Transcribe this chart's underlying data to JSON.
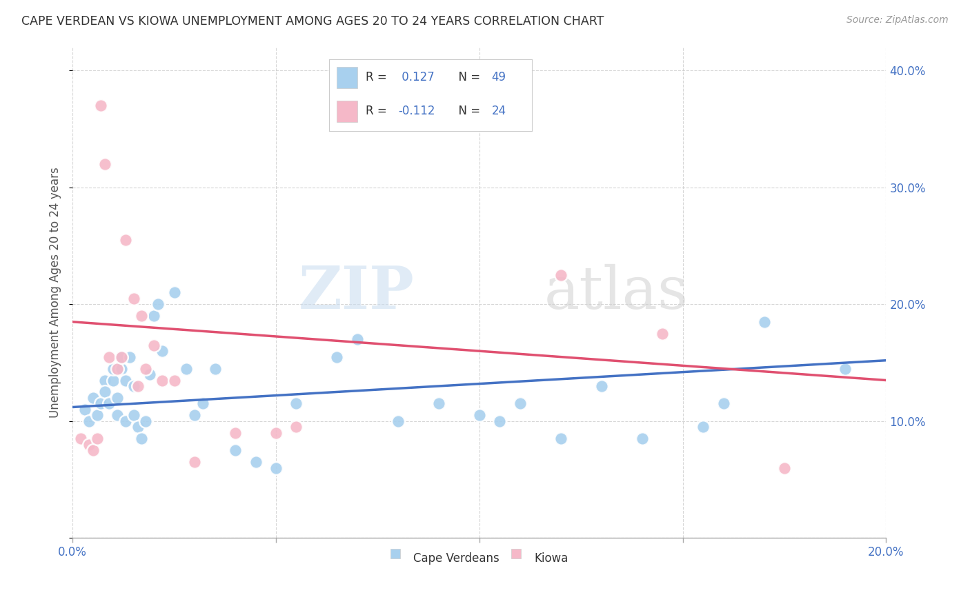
{
  "title": "CAPE VERDEAN VS KIOWA UNEMPLOYMENT AMONG AGES 20 TO 24 YEARS CORRELATION CHART",
  "source": "Source: ZipAtlas.com",
  "ylabel": "Unemployment Among Ages 20 to 24 years",
  "legend_label_blue": "Cape Verdeans",
  "legend_label_pink": "Kiowa",
  "blue_color": "#A8D0EE",
  "pink_color": "#F5B8C8",
  "blue_line_color": "#4472C4",
  "pink_line_color": "#E05070",
  "watermark_zip": "ZIP",
  "watermark_atlas": "atlas",
  "xlim": [
    0.0,
    0.2
  ],
  "ylim": [
    0.0,
    0.42
  ],
  "xticks": [
    0.0,
    0.2
  ],
  "xticklabels": [
    "0.0%",
    "20.0%"
  ],
  "xticks_minor": [
    0.05,
    0.1,
    0.15
  ],
  "yticks": [
    0.0,
    0.1,
    0.2,
    0.3,
    0.4
  ],
  "yticklabels_right": [
    "",
    "10.0%",
    "20.0%",
    "30.0%",
    "40.0%"
  ],
  "blue_scatter_x": [
    0.003,
    0.004,
    0.005,
    0.006,
    0.007,
    0.008,
    0.008,
    0.009,
    0.01,
    0.01,
    0.011,
    0.011,
    0.012,
    0.012,
    0.013,
    0.013,
    0.014,
    0.015,
    0.015,
    0.016,
    0.017,
    0.018,
    0.019,
    0.02,
    0.021,
    0.022,
    0.025,
    0.028,
    0.03,
    0.032,
    0.035,
    0.04,
    0.045,
    0.05,
    0.055,
    0.065,
    0.07,
    0.08,
    0.09,
    0.1,
    0.105,
    0.11,
    0.12,
    0.13,
    0.14,
    0.155,
    0.16,
    0.17,
    0.19
  ],
  "blue_scatter_y": [
    0.11,
    0.1,
    0.12,
    0.105,
    0.115,
    0.135,
    0.125,
    0.115,
    0.135,
    0.145,
    0.12,
    0.105,
    0.145,
    0.155,
    0.135,
    0.1,
    0.155,
    0.13,
    0.105,
    0.095,
    0.085,
    0.1,
    0.14,
    0.19,
    0.2,
    0.16,
    0.21,
    0.145,
    0.105,
    0.115,
    0.145,
    0.075,
    0.065,
    0.06,
    0.115,
    0.155,
    0.17,
    0.1,
    0.115,
    0.105,
    0.1,
    0.115,
    0.085,
    0.13,
    0.085,
    0.095,
    0.115,
    0.185,
    0.145
  ],
  "pink_scatter_x": [
    0.002,
    0.004,
    0.005,
    0.006,
    0.007,
    0.008,
    0.009,
    0.011,
    0.012,
    0.013,
    0.015,
    0.016,
    0.017,
    0.018,
    0.02,
    0.022,
    0.025,
    0.03,
    0.04,
    0.05,
    0.055,
    0.12,
    0.145,
    0.175
  ],
  "pink_scatter_y": [
    0.085,
    0.08,
    0.075,
    0.085,
    0.37,
    0.32,
    0.155,
    0.145,
    0.155,
    0.255,
    0.205,
    0.13,
    0.19,
    0.145,
    0.165,
    0.135,
    0.135,
    0.065,
    0.09,
    0.09,
    0.095,
    0.225,
    0.175,
    0.06
  ],
  "blue_trend_x": [
    0.0,
    0.2
  ],
  "blue_trend_y": [
    0.112,
    0.152
  ],
  "pink_trend_x": [
    0.0,
    0.2
  ],
  "pink_trend_y": [
    0.185,
    0.135
  ]
}
